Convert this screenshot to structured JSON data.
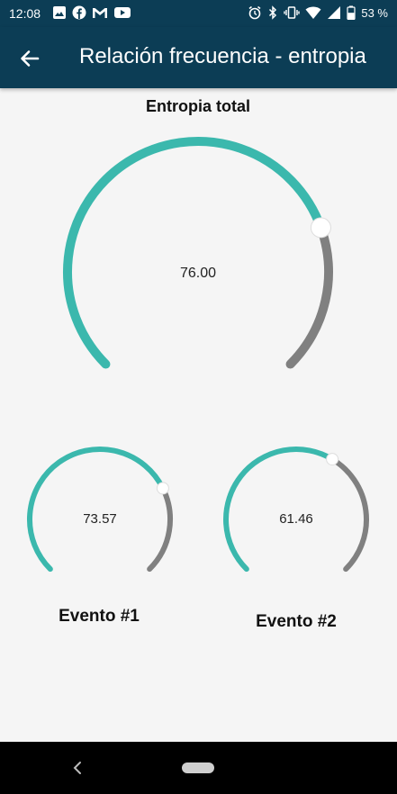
{
  "status_bar": {
    "time": "12:08",
    "battery": "53 %",
    "notification_icons": [
      "image-icon",
      "facebook-icon",
      "gmail-icon",
      "youtube-icon"
    ],
    "system_icons": [
      "alarm-icon",
      "bluetooth-icon",
      "vibrate-icon",
      "wifi-icon",
      "signal-icon",
      "battery-icon"
    ]
  },
  "app_bar": {
    "title": "Relación frecuencia - entropia",
    "back_icon": "arrow-back-icon"
  },
  "gauges": [
    {
      "id": "total",
      "label": "Entropia total",
      "value_text": "76.00",
      "value": 76.0
    },
    {
      "id": "evento1",
      "label": "Evento #1",
      "value_text": "73.57",
      "value": 73.57
    },
    {
      "id": "evento2",
      "label": "Evento #2",
      "value_text": "61.46",
      "value": 61.46
    }
  ],
  "colors": {
    "primary": "#0c3d55",
    "accent": "#3bb8ad",
    "track": "#808080",
    "background": "#f5f5f5"
  }
}
